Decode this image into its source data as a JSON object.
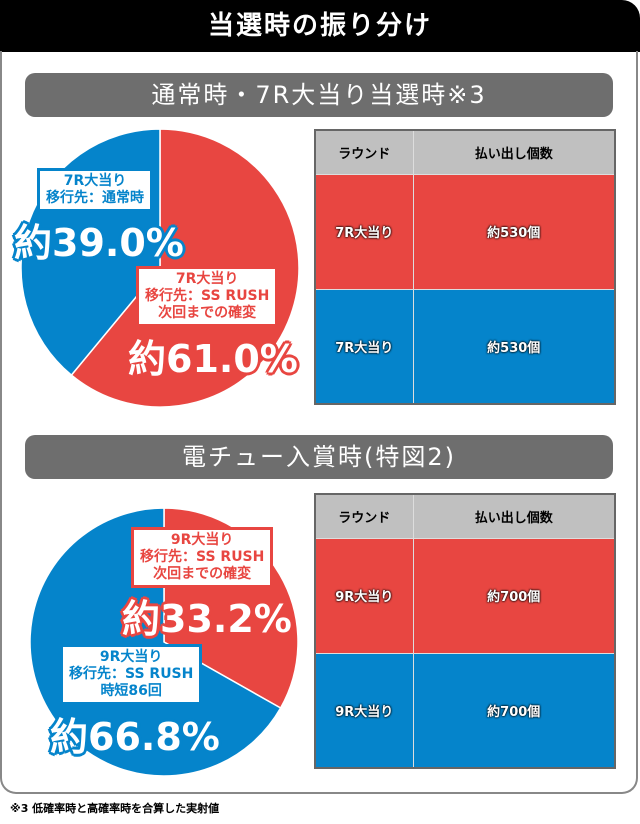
{
  "title": "当選時の振り分け",
  "footnote": "※3 低確率時と高確率時を合算した実射値",
  "colors": {
    "red": "#e84641",
    "blue": "#0584cb",
    "header_gray": "#c0c0c0",
    "section_bar": "#6e6e6e"
  },
  "sections": [
    {
      "heading": "通常時・7R大当り当選時※3",
      "table": {
        "headers": [
          "ラウンド",
          "払い出し個数"
        ],
        "rows": [
          [
            "7R大当り",
            "約530個"
          ],
          [
            "7R大当り",
            "約530個"
          ]
        ]
      },
      "labels": [
        {
          "lines": [
            "7R大当り",
            "移行先：通常時"
          ],
          "pct": "約39.0%"
        },
        {
          "lines": [
            "7R大当り",
            "移行先：SS RUSH",
            "次回までの確変"
          ],
          "pct": "約61.0%"
        }
      ]
    },
    {
      "heading": "電チュー入賞時(特図2)",
      "table": {
        "headers": [
          "ラウンド",
          "払い出し個数"
        ],
        "rows": [
          [
            "9R大当り",
            "約700個"
          ],
          [
            "9R大当り",
            "約700個"
          ]
        ]
      },
      "labels": [
        {
          "lines": [
            "9R大当り",
            "移行先：SS RUSH",
            "次回までの確変"
          ],
          "pct": "約33.2%"
        },
        {
          "lines": [
            "9R大当り",
            "移行先：SS RUSH",
            "時短86回"
          ],
          "pct": "約66.8%"
        }
      ]
    }
  ],
  "chart_data": [
    {
      "type": "pie",
      "start": "top",
      "direction": "clockwise",
      "slices": [
        {
          "label": "7R大当り 移行先：SS RUSH 次回までの確変",
          "value": 61.0,
          "color": "#e84641"
        },
        {
          "label": "7R大当り 移行先：通常時",
          "value": 39.0,
          "color": "#0584cb"
        }
      ]
    },
    {
      "type": "pie",
      "start": "top",
      "direction": "clockwise",
      "slices": [
        {
          "label": "9R大当り 移行先：SS RUSH 次回までの確変",
          "value": 33.2,
          "color": "#e84641"
        },
        {
          "label": "9R大当り 移行先：SS RUSH 時短86回",
          "value": 66.8,
          "color": "#0584cb"
        }
      ]
    }
  ]
}
